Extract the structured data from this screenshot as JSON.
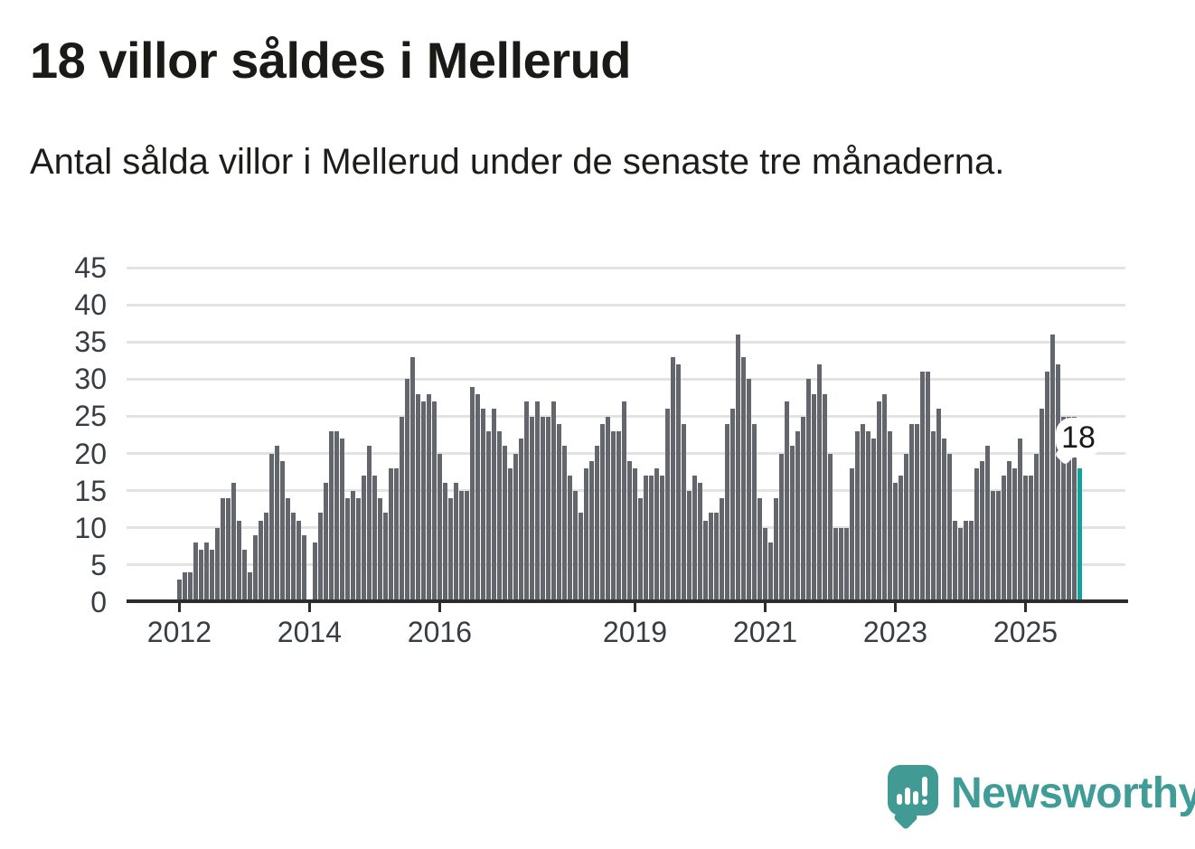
{
  "header": {
    "title": "18 villor såldes i Mellerud",
    "subtitle": "Antal sålda villor i Mellerud under de senaste tre månaderna."
  },
  "annotation": {
    "label": "18"
  },
  "logo": {
    "text": "Newsworthy"
  },
  "chart_data": {
    "type": "bar",
    "title": "18 villor såldes i Mellerud",
    "xlabel": "",
    "ylabel": "",
    "x_start": "2012-01",
    "x_end": "2025-11",
    "x_unit": "month",
    "x_tick_years": [
      2012,
      2014,
      2016,
      2019,
      2021,
      2023,
      2025
    ],
    "y_ticks": [
      0,
      5,
      10,
      15,
      20,
      25,
      30,
      35,
      40,
      45
    ],
    "ylim": [
      0,
      45
    ],
    "grid": "horizontal",
    "values": [
      3,
      4,
      4,
      8,
      7,
      8,
      7,
      10,
      14,
      14,
      16,
      11,
      7,
      4,
      9,
      11,
      12,
      20,
      21,
      19,
      14,
      12,
      11,
      9,
      0,
      8,
      12,
      16,
      23,
      23,
      22,
      14,
      15,
      14,
      17,
      21,
      17,
      14,
      12,
      18,
      18,
      25,
      30,
      33,
      28,
      27,
      28,
      27,
      20,
      16,
      14,
      16,
      15,
      15,
      29,
      28,
      26,
      23,
      26,
      23,
      21,
      18,
      20,
      22,
      27,
      25,
      27,
      25,
      25,
      27,
      24,
      21,
      17,
      15,
      12,
      18,
      19,
      21,
      24,
      25,
      23,
      23,
      27,
      19,
      18,
      14,
      17,
      17,
      18,
      17,
      26,
      33,
      32,
      24,
      15,
      17,
      16,
      11,
      12,
      12,
      14,
      24,
      26,
      36,
      33,
      30,
      24,
      14,
      10,
      8,
      14,
      20,
      27,
      21,
      23,
      25,
      30,
      28,
      32,
      28,
      20,
      10,
      10,
      10,
      18,
      23,
      24,
      23,
      22,
      27,
      28,
      23,
      16,
      17,
      20,
      24,
      24,
      31,
      31,
      23,
      26,
      22,
      20,
      11,
      10,
      11,
      11,
      18,
      19,
      21,
      15,
      15,
      17,
      19,
      18,
      22,
      17,
      17,
      20,
      26,
      31,
      36,
      32,
      25,
      25,
      25,
      18
    ],
    "highlight_last": true,
    "highlight_value": 18,
    "legend": "none",
    "colors": {
      "bar": "#63666c",
      "highlight": "#10a2a0",
      "grid": "#e3e3e5",
      "axis": "#2d2d2d",
      "tick_text": "#383d43",
      "logo": "#419a94"
    }
  }
}
